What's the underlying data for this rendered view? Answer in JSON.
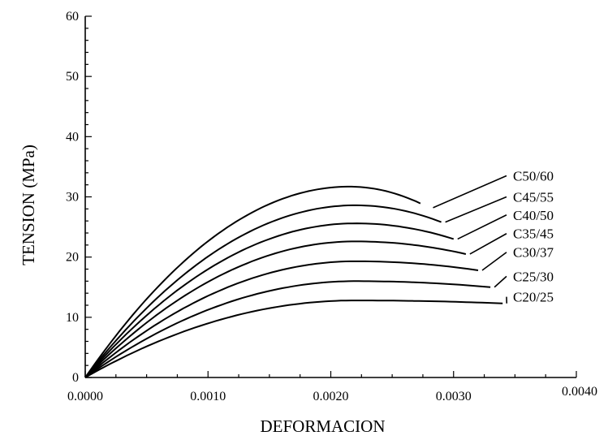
{
  "chart_data": {
    "type": "line",
    "title": "",
    "xlabel": "DEFORMACION",
    "ylabel": "TENSION (MPa)",
    "xlim": [
      0,
      0.004
    ],
    "ylim": [
      0,
      60
    ],
    "x_tick_labels": [
      "0.0000",
      "0.0010",
      "0.0020",
      "0.0030",
      "0.0040"
    ],
    "x_ticks": [
      0,
      0.001,
      0.002,
      0.003,
      0.004
    ],
    "y_tick_labels": [
      "0",
      "10",
      "20",
      "30",
      "40",
      "50",
      "60"
    ],
    "y_ticks": [
      0,
      10,
      20,
      30,
      40,
      50,
      60
    ],
    "grid": false,
    "series": [
      {
        "name": "C50/60",
        "peak_strain": 0.00215,
        "peak_stress": 31.7,
        "end_strain": 0.0028,
        "end_stress": 28.2,
        "gap_after": 0.00275,
        "label_y": 33.5
      },
      {
        "name": "C45/55",
        "peak_strain": 0.0022,
        "peak_stress": 28.6,
        "end_strain": 0.0029,
        "end_stress": 25.8,
        "label_y": 30.0
      },
      {
        "name": "C40/50",
        "peak_strain": 0.0022,
        "peak_stress": 25.6,
        "end_strain": 0.003,
        "end_stress": 23.0,
        "label_y": 27.0
      },
      {
        "name": "C35/45",
        "peak_strain": 0.0022,
        "peak_stress": 22.6,
        "end_strain": 0.0031,
        "end_stress": 20.5,
        "label_y": 23.9
      },
      {
        "name": "C30/37",
        "peak_strain": 0.0022,
        "peak_stress": 19.3,
        "end_strain": 0.0032,
        "end_stress": 17.8,
        "label_y": 20.8
      },
      {
        "name": "C25/30",
        "peak_strain": 0.0022,
        "peak_stress": 16.0,
        "end_strain": 0.0033,
        "end_stress": 15.0,
        "label_y": 16.8
      },
      {
        "name": "C20/25",
        "peak_strain": 0.0022,
        "peak_stress": 12.8,
        "end_strain": 0.0034,
        "end_stress": 12.3,
        "label_y": 13.4
      }
    ]
  }
}
